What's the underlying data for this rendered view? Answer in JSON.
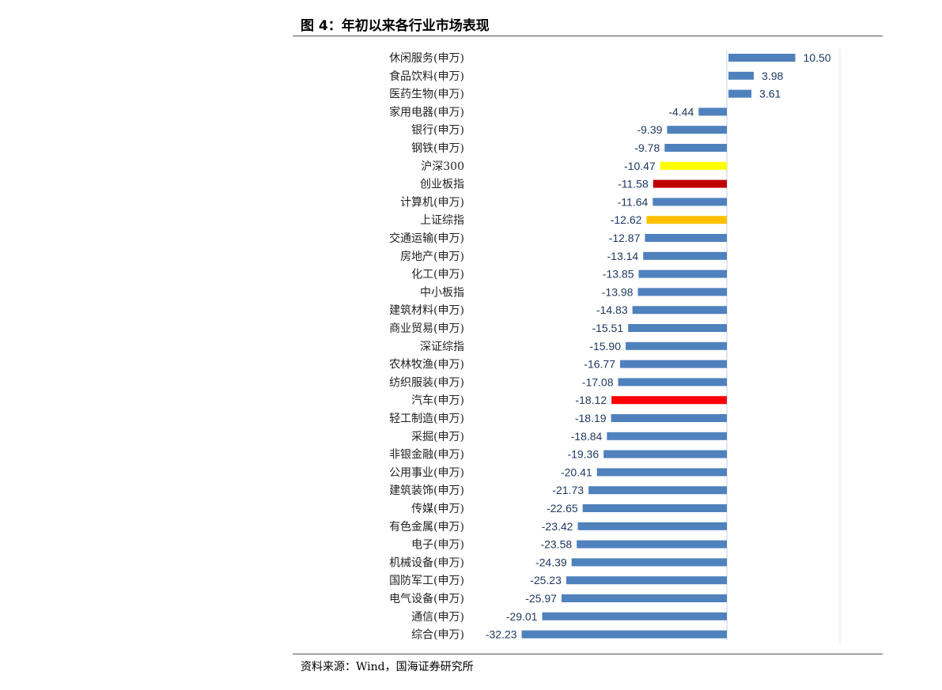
{
  "chart_data": {
    "type": "bar",
    "orientation": "horizontal",
    "title": "图 4：年初以来各行业市场表现",
    "source": "资料来源：Wind，国海证券研究所",
    "categories": [
      "休闲服务(申万)",
      "食品饮料(申万)",
      "医药生物(申万)",
      "家用电器(申万)",
      "银行(申万)",
      "钢铁(申万)",
      "沪深300",
      "创业板指",
      "计算机(申万)",
      "上证综指",
      "交通运输(申万)",
      "房地产(申万)",
      "化工(申万)",
      "中小板指",
      "建筑材料(申万)",
      "商业贸易(申万)",
      "深证综指",
      "农林牧渔(申万)",
      "纺织服装(申万)",
      "汽车(申万)",
      "轻工制造(申万)",
      "采掘(申万)",
      "非银金融(申万)",
      "公用事业(申万)",
      "建筑装饰(申万)",
      "传媒(申万)",
      "有色金属(申万)",
      "电子(申万)",
      "机械设备(申万)",
      "国防军工(申万)",
      "电气设备(申万)",
      "通信(申万)",
      "综合(申万)"
    ],
    "values": [
      10.5,
      3.98,
      3.61,
      -4.44,
      -9.39,
      -9.78,
      -10.47,
      -11.58,
      -11.64,
      -12.62,
      -12.87,
      -13.14,
      -13.85,
      -13.98,
      -14.83,
      -15.51,
      -15.9,
      -16.77,
      -17.08,
      -18.12,
      -18.19,
      -18.84,
      -19.36,
      -20.41,
      -21.73,
      -22.65,
      -23.42,
      -23.58,
      -24.39,
      -25.23,
      -25.97,
      -29.01,
      -32.23
    ],
    "labels": [
      "10.50",
      "3.98",
      "3.61",
      "-4.44",
      "-9.39",
      "-9.78",
      "-10.47",
      "-11.58",
      "-11.64",
      "-12.62",
      "-12.87",
      "-13.14",
      "-13.85",
      "-13.98",
      "-14.83",
      "-15.51",
      "-15.90",
      "-16.77",
      "-17.08",
      "-18.12",
      "-18.19",
      "-18.84",
      "-19.36",
      "-20.41",
      "-21.73",
      "-22.65",
      "-23.42",
      "-23.58",
      "-24.39",
      "-25.23",
      "-25.97",
      "-29.01",
      "-32.23"
    ],
    "default_color": "#4f81bd",
    "highlight_colors": {
      "沪深300": "#ffff00",
      "创业板指": "#c00000",
      "上证综指": "#ffc000",
      "汽车(申万)": "#ff0000"
    },
    "xlim": [
      -33,
      17
    ],
    "grid": false,
    "legend": "none"
  }
}
